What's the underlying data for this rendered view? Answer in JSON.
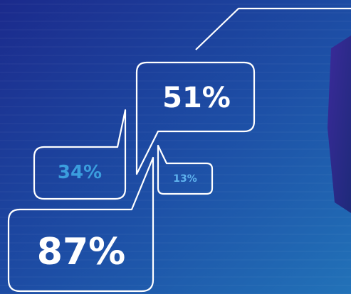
{
  "bubbles": [
    {
      "label": "51%"
    },
    {
      "label": "34%"
    },
    {
      "label": "13%"
    },
    {
      "label": "87%"
    }
  ]
}
